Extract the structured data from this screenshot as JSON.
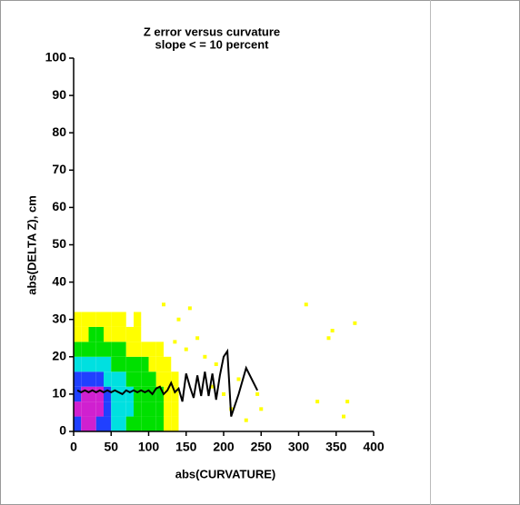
{
  "chart_data": {
    "type": "heatmap",
    "title": "Z error versus curvature",
    "subtitle": "slope < = 10 percent",
    "x_label": "abs(CURVATURE)",
    "y_label": "abs(DELTA Z), cm",
    "xlim": [
      0,
      400
    ],
    "ylim": [
      0,
      100
    ],
    "xticks": [
      0,
      50,
      100,
      150,
      200,
      250,
      300,
      350,
      400
    ],
    "yticks": [
      0,
      10,
      20,
      30,
      40,
      50,
      60,
      70,
      80,
      90,
      100
    ],
    "colors": [
      "#ffff00",
      "#00e000",
      "#00e0e0",
      "#2040ff",
      "#d020d0"
    ],
    "x_bins": [
      0,
      10,
      20,
      30,
      40,
      50,
      60,
      70,
      80,
      90,
      100,
      110,
      120,
      130,
      140
    ],
    "y_bins": [
      0,
      4,
      8,
      12,
      16,
      20,
      24,
      28,
      32
    ],
    "z": [
      [
        4,
        5,
        5,
        4,
        4,
        3,
        3,
        2,
        2,
        2,
        2,
        2,
        1,
        1
      ],
      [
        5,
        5,
        5,
        5,
        4,
        3,
        3,
        3,
        2,
        2,
        2,
        2,
        1,
        1
      ],
      [
        4,
        5,
        5,
        5,
        4,
        3,
        3,
        3,
        2,
        2,
        2,
        2,
        1,
        1
      ],
      [
        4,
        4,
        4,
        4,
        3,
        3,
        3,
        2,
        2,
        2,
        2,
        1,
        1,
        1
      ],
      [
        3,
        3,
        3,
        3,
        3,
        2,
        2,
        2,
        2,
        2,
        1,
        1,
        1,
        0
      ],
      [
        2,
        2,
        2,
        2,
        2,
        2,
        2,
        1,
        1,
        1,
        1,
        1,
        0,
        0
      ],
      [
        1,
        1,
        2,
        2,
        1,
        1,
        1,
        1,
        1,
        0,
        0,
        0,
        0,
        0
      ],
      [
        1,
        1,
        1,
        1,
        1,
        1,
        1,
        0,
        1,
        0,
        0,
        0,
        0,
        0
      ]
    ],
    "overlays": [
      {
        "type": "scatter",
        "color": "#ffff00",
        "x": [
          310,
          345,
          340,
          375,
          325,
          360,
          365,
          250,
          245,
          230,
          210,
          200,
          175,
          165,
          155,
          190,
          140,
          120,
          150,
          185,
          220,
          135
        ],
        "y": [
          34,
          27,
          25,
          29,
          8,
          4,
          8,
          6,
          10,
          3,
          6,
          10,
          20,
          25,
          33,
          18,
          30,
          34,
          22,
          12,
          14,
          24
        ]
      },
      {
        "type": "line",
        "color": "#000000",
        "x": [
          5,
          10,
          15,
          20,
          25,
          30,
          35,
          40,
          45,
          50,
          55,
          60,
          65,
          70,
          75,
          80,
          85,
          90,
          95,
          100,
          105,
          110,
          115,
          120,
          125,
          130,
          135,
          140,
          145,
          150,
          155,
          160,
          165,
          170,
          175,
          180,
          185,
          190,
          195,
          200,
          205,
          210,
          220,
          230,
          245
        ],
        "y": [
          11,
          10.5,
          11,
          10.5,
          11,
          10.5,
          11,
          10.5,
          11,
          10.5,
          11,
          10.5,
          10,
          11,
          10.5,
          11,
          10.5,
          11,
          10.5,
          11,
          10,
          11.5,
          12,
          10,
          11,
          13,
          10.5,
          11.5,
          8,
          15.5,
          12,
          9,
          15,
          9.5,
          16,
          9.5,
          15.5,
          8.5,
          15,
          20,
          21.5,
          4,
          10,
          17,
          11
        ]
      }
    ]
  }
}
